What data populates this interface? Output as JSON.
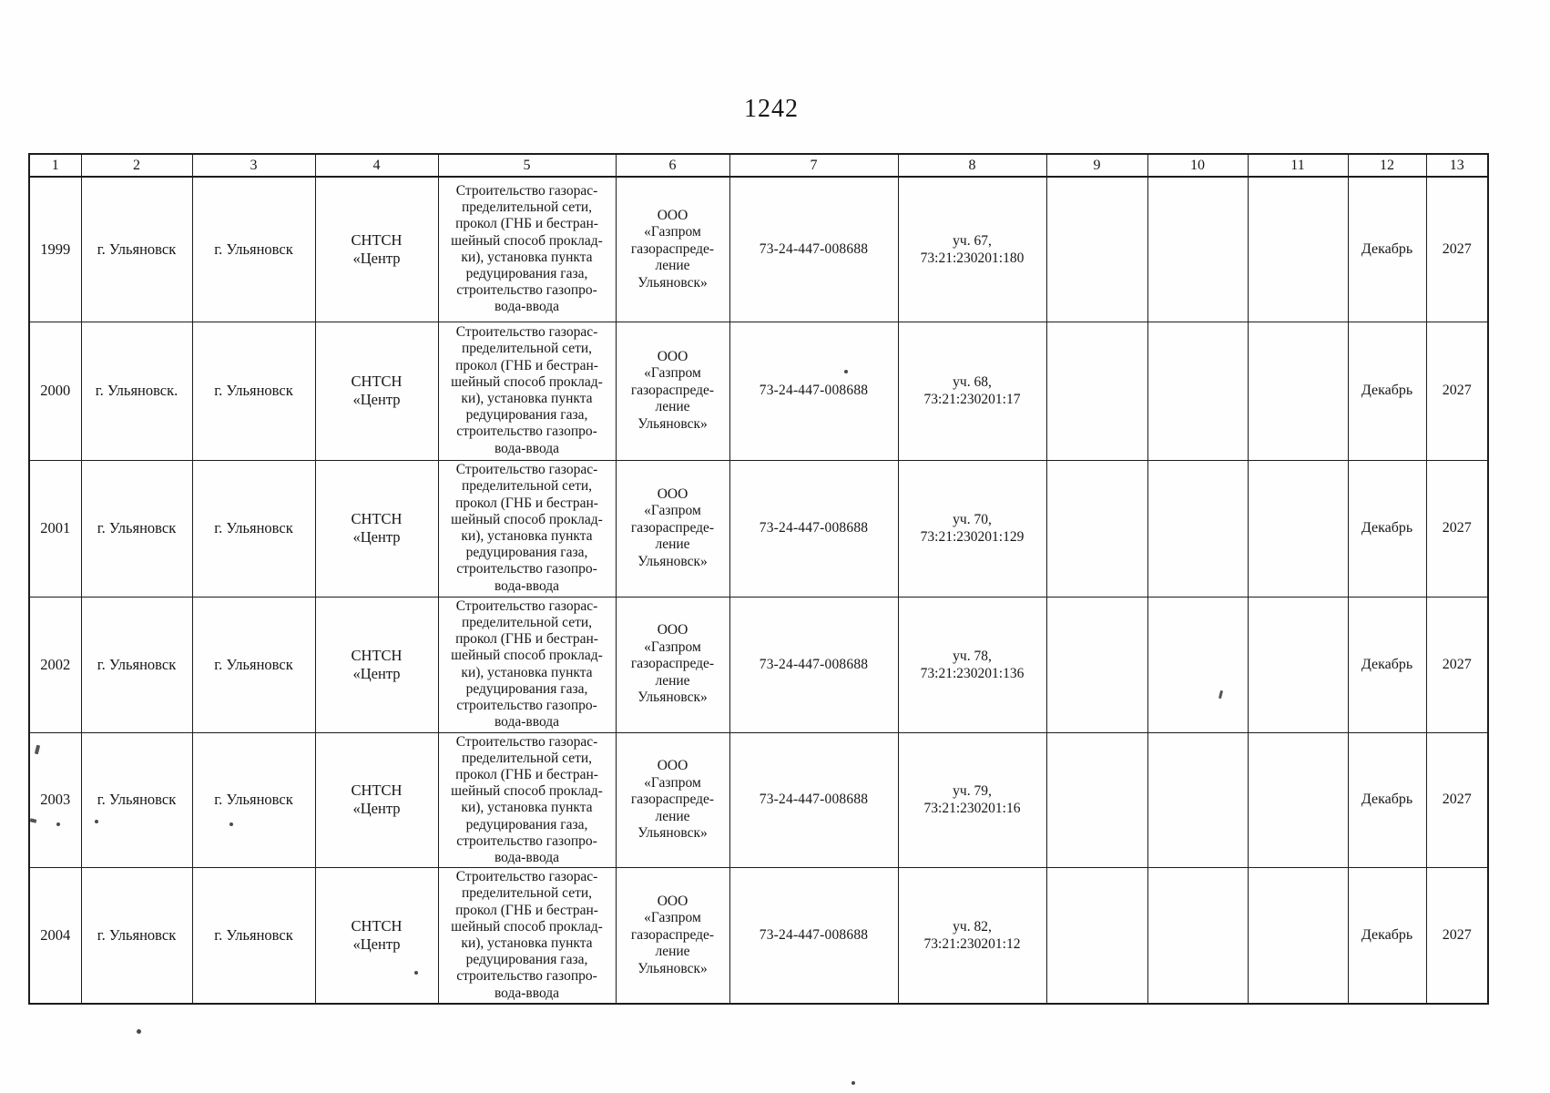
{
  "page_number": "1242",
  "table": {
    "headers": [
      "1",
      "2",
      "3",
      "4",
      "5",
      "6",
      "7",
      "8",
      "9",
      "10",
      "11",
      "12",
      "13"
    ],
    "rows": [
      {
        "cells": [
          "1999",
          "г. Ульяновск",
          "г. Ульяновск",
          "СНТСН\n«Центр",
          "Строительство  газорас-\nпределительной сети,\nпрокол (ГНБ и бестран-\nшейный способ проклад-\nки), установка пункта\nредуцирования газа,\nстроительство  газопро-\nвода-ввода",
          "ООО\n«Газпром\nгазораспреде-\nление\nУльяновск»",
          "73-24-447-008688",
          "уч. 67,\n73:21:230201:180",
          "",
          "",
          "",
          "Декабрь",
          "2027"
        ]
      },
      {
        "cells": [
          "2000",
          "г. Ульяновск.",
          "г. Ульяновск",
          "СНТСН\n«Центр",
          "Строительство  газорас-\nпределительной сети,\nпрокол (ГНБ и бестран-\nшейный способ проклад-\nки), установка пункта\nредуцирования газа,\nстроительство  газопро-\nвода-ввода",
          "ООО\n«Газпром\nгазораспреде-\nление\nУльяновск»",
          "73-24-447-008688",
          "уч. 68,\n73:21:230201:17",
          "",
          "",
          "",
          "Декабрь",
          "2027"
        ]
      },
      {
        "cells": [
          "2001",
          "г. Ульяновск",
          "г. Ульяновск",
          "СНТСН\n«Центр",
          "Строительство  газорас-\nпределительной сети,\nпрокол (ГНБ и бестран-\nшейный способ проклад-\nки), установка пункта\nредуцирования газа,\nстроительство  газопро-\nвода-ввода",
          "ООО\n«Газпром\nгазораспреде-\nление\nУльяновск»",
          "73-24-447-008688",
          "уч. 70,\n73:21:230201:129",
          "",
          "",
          "",
          "Декабрь",
          "2027"
        ]
      },
      {
        "cells": [
          "2002",
          "г. Ульяновск",
          "г. Ульяновск",
          "СНТСН\n«Центр",
          "Строительство  газорас-\nпределительной сети,\nпрокол (ГНБ и бестран-\nшейный способ проклад-\nки), установка пункта\nредуцирования газа,\nстроительство  газопро-\nвода-ввода",
          "ООО\n«Газпром\nгазораспреде-\nление\nУльяновск»",
          "73-24-447-008688",
          "уч. 78,\n73:21:230201:136",
          "",
          "",
          "",
          "Декабрь",
          "2027"
        ]
      },
      {
        "cells": [
          "2003",
          "г. Ульяновск",
          "г. Ульяновск",
          "СНТСН\n«Центр",
          "Строительство  газорас-\nпределительной сети,\nпрокол (ГНБ и бестран-\nшейный способ проклад-\nки), установка пункта\nредуцирования газа,\nстроительство  газопро-\nвода-ввода",
          "ООО\n«Газпром\nгазораспреде-\nление\nУльяновск»",
          "73-24-447-008688",
          "уч. 79,\n73:21:230201:16",
          "",
          "",
          "",
          "Декабрь",
          "2027"
        ]
      },
      {
        "cells": [
          "2004",
          "г. Ульяновск",
          "г. Ульяновск",
          "СНТСН\n«Центр",
          "Строительство  газорас-\nпределительной сети,\nпрокол (ГНБ и бестран-\nшейный способ проклад-\nки), установка пункта\nредуцирования газа,\nстроительство  газопро-\nвода-ввода",
          "ООО\n«Газпром\nгазораспреде-\nление\nУльяновск»",
          "73-24-447-008688",
          "уч. 82,\n73:21:230201:12",
          "",
          "",
          "",
          "Декабрь",
          "2027"
        ]
      }
    ]
  }
}
